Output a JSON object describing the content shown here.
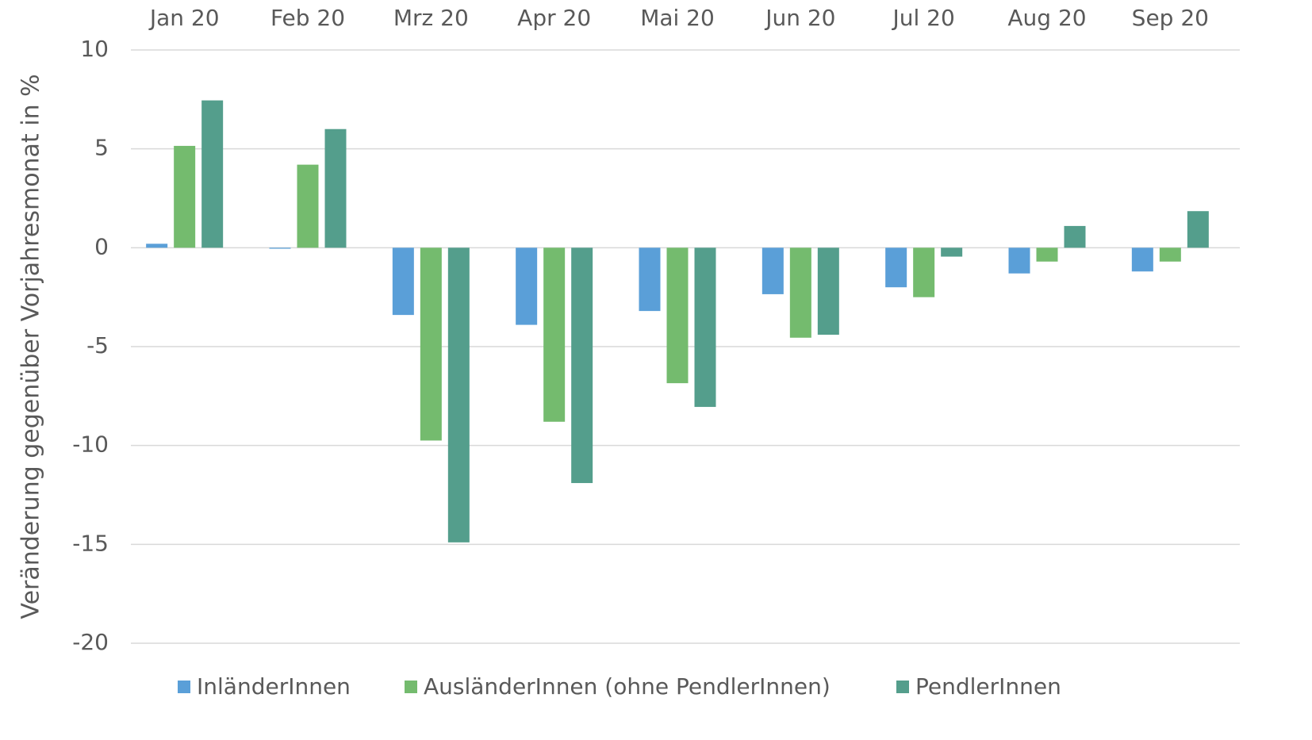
{
  "chart_data": {
    "type": "bar",
    "y_label": "Veränderung gegenüber Vorjahresmonat in %",
    "categories": [
      "Jan 20",
      "Feb 20",
      "Mrz 20",
      "Apr 20",
      "Mai 20",
      "Jun 20",
      "Jul 20",
      "Aug 20",
      "Sep 20"
    ],
    "series": [
      {
        "name": "InländerInnen",
        "color": "#5a9fd8",
        "values": [
          0.2,
          -0.05,
          -3.4,
          -3.9,
          -3.2,
          -2.35,
          -2.0,
          -1.3,
          -1.2
        ]
      },
      {
        "name": "AusländerInnen (ohne PendlerInnen)",
        "color": "#74bb6e",
        "values": [
          5.15,
          4.2,
          -9.75,
          -8.8,
          -6.85,
          -4.55,
          -2.5,
          -0.7,
          -0.7
        ]
      },
      {
        "name": "PendlerInnen",
        "color": "#549e8c",
        "values": [
          7.45,
          6.0,
          -14.9,
          -11.9,
          -8.05,
          -4.4,
          -0.45,
          1.1,
          1.85
        ]
      }
    ],
    "ylim": [
      -20,
      10
    ],
    "yticks": [
      -20,
      -15,
      -10,
      -5,
      0,
      5,
      10
    ],
    "grid": true,
    "legend": "bottom"
  }
}
